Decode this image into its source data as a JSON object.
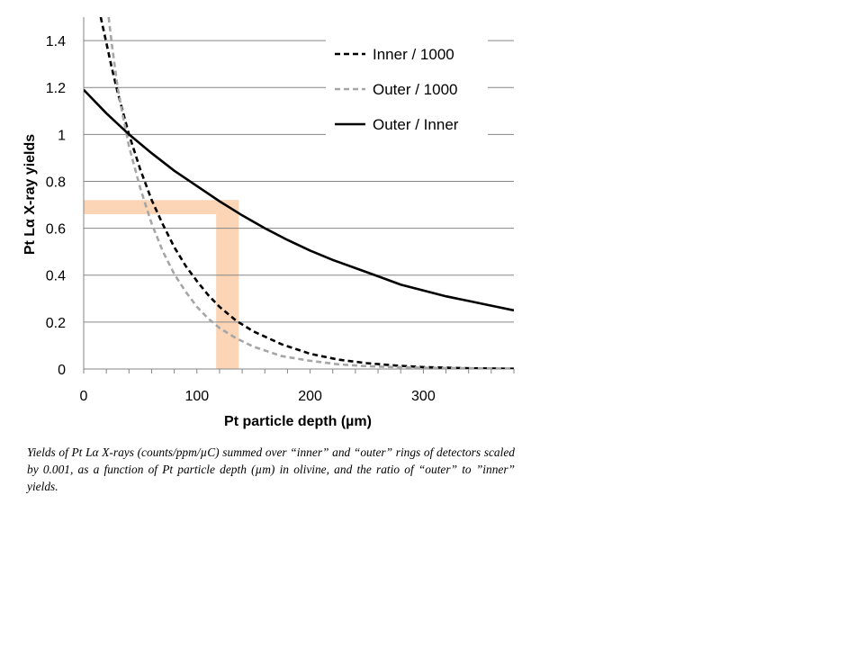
{
  "chart_data": {
    "type": "line",
    "xlabel": "Pt particle depth (µm)",
    "ylabel": "Pt Lα X-ray yields",
    "xlim": [
      0,
      380
    ],
    "ylim": [
      0,
      1.5
    ],
    "x_ticks": [
      0,
      100,
      200,
      300
    ],
    "x_tick_labels": [
      "0",
      "100",
      "200",
      "300"
    ],
    "y_ticks": [
      0,
      0.2,
      0.4,
      0.6,
      0.8,
      1,
      1.2,
      1.4
    ],
    "y_tick_labels": [
      "0",
      "0.2",
      "0.4",
      "0.6",
      "0.8",
      "1",
      "1.2",
      "1.4"
    ],
    "grid": "horizontal",
    "legend_position": "top-right",
    "series": [
      {
        "name": "Inner / 1000",
        "style": "dashed",
        "color": "#000000",
        "x": [
          15,
          20,
          25,
          30,
          35,
          40,
          50,
          60,
          70,
          80,
          90,
          100,
          110,
          120,
          135,
          150,
          175,
          200,
          225,
          250,
          275,
          300,
          340,
          380
        ],
        "y": [
          1.5,
          1.39,
          1.28,
          1.18,
          1.09,
          1.0,
          0.85,
          0.72,
          0.615,
          0.52,
          0.44,
          0.375,
          0.315,
          0.265,
          0.205,
          0.16,
          0.105,
          0.065,
          0.04,
          0.025,
          0.015,
          0.008,
          0.003,
          0.001
        ]
      },
      {
        "name": "Outer / 1000",
        "style": "dashed",
        "color": "#a6a6a6",
        "x": [
          22,
          25,
          30,
          35,
          40,
          50,
          60,
          70,
          80,
          90,
          100,
          110,
          120,
          135,
          150,
          175,
          200,
          225,
          250,
          275,
          300,
          340,
          380
        ],
        "y": [
          1.5,
          1.38,
          1.2,
          1.07,
          0.95,
          0.77,
          0.62,
          0.5,
          0.405,
          0.33,
          0.265,
          0.215,
          0.175,
          0.13,
          0.095,
          0.055,
          0.035,
          0.02,
          0.012,
          0.008,
          0.005,
          0.003,
          0.002
        ]
      },
      {
        "name": "Outer / Inner",
        "style": "solid",
        "color": "#000000",
        "x": [
          0,
          20,
          40,
          60,
          80,
          100,
          120,
          140,
          160,
          180,
          200,
          220,
          240,
          260,
          280,
          300,
          320,
          340,
          360,
          380
        ],
        "y": [
          1.19,
          1.09,
          1.0,
          0.92,
          0.845,
          0.78,
          0.715,
          0.655,
          0.6,
          0.55,
          0.505,
          0.465,
          0.43,
          0.395,
          0.36,
          0.335,
          0.31,
          0.29,
          0.27,
          0.25
        ]
      }
    ],
    "highlight": {
      "color": "#fbd5b5",
      "horizontal_band_y": [
        0.66,
        0.72
      ],
      "vertical_band_x": [
        117,
        137
      ]
    }
  },
  "caption": "Yields of Pt Lα X-rays (counts/ppm/µC) summed over “inner” and “outer” rings of detectors scaled by 0.001, as a function of Pt particle depth (µm) in olivine, and the ratio of “outer” to ”inner” yields."
}
